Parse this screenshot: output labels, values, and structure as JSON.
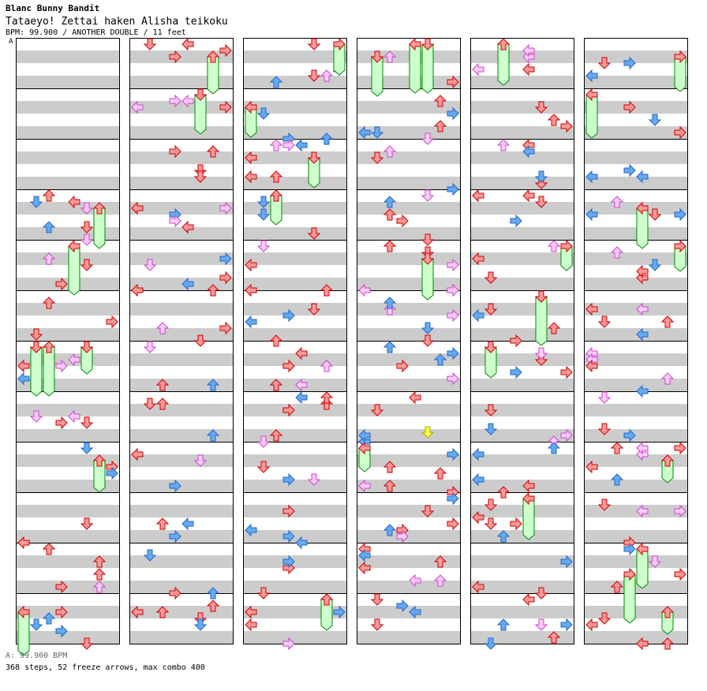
{
  "header": {
    "title": "Blanc Bunny Bandit",
    "subtitle": "Tataeyo! Zettai haken Alisha teikoku",
    "info": "BPM: 99.900 / ANOTHER DOUBLE / 11 feet",
    "speed_marker": "A"
  },
  "footer": {
    "bpm_line": "A: 99.900 BPM",
    "stats_line": "368 steps, 52 freeze arrows, max combo 400"
  },
  "colors": {
    "stripe": "#cccccc",
    "column_border": "#000000",
    "red_arrow": "#ff9999",
    "red_stroke": "#cc0000",
    "blue_arrow": "#66aaee",
    "blue_stroke": "#2266cc",
    "pink_arrow": "#ffccff",
    "pink_stroke": "#cc44cc",
    "yellow_arrow": "#ffff44",
    "yellow_stroke": "#aaaa00",
    "freeze_fill": "#ccffcc",
    "freeze_stroke": "#008800"
  },
  "chart_data": {
    "type": "step-chart",
    "columns": 6,
    "measures_per_column": 12,
    "lanes": [
      "L1",
      "D1",
      "U1",
      "R1",
      "L2",
      "D2",
      "U2",
      "R2"
    ],
    "notes_sample": [
      {
        "col": 0,
        "measure": 3,
        "beat": 0,
        "lane": "U1",
        "kind": "quarter"
      },
      {
        "col": 0,
        "measure": 3,
        "beat": 0.5,
        "lane": "D1",
        "kind": "eighth"
      },
      {
        "col": 0,
        "measure": 4,
        "beat": 0,
        "lane": "L2",
        "kind": "freeze"
      },
      {
        "col": 0,
        "measure": 6,
        "beat": 0,
        "lane": "D1",
        "kind": "freeze"
      },
      {
        "col": 0,
        "measure": 6,
        "beat": 0,
        "lane": "U1",
        "kind": "freeze"
      },
      {
        "col": 3,
        "measure": 0,
        "beat": 0,
        "lane": "L2",
        "kind": "freeze"
      },
      {
        "col": 3,
        "measure": 0,
        "beat": 0,
        "lane": "D2",
        "kind": "freeze"
      },
      {
        "col": 3,
        "measure": 7,
        "beat": 2.75,
        "lane": "D2",
        "kind": "sixteenth-yellow"
      },
      {
        "col": 4,
        "measure": 5,
        "beat": 0,
        "lane": "D2",
        "kind": "freeze"
      },
      {
        "col": 5,
        "measure": 10,
        "beat": 2,
        "lane": "R1",
        "kind": "freeze"
      }
    ]
  }
}
